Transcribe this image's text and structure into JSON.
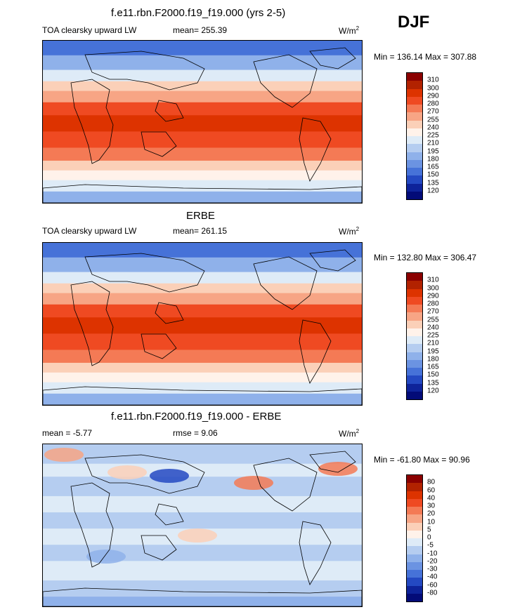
{
  "season": "DJF",
  "units_base": "W/m",
  "units_sup": "2",
  "panels": [
    {
      "title": "f.e11.rbn.F2000.f19_f19.000 (yrs 2-5)",
      "left_label": "TOA clearsky upward LW",
      "center_label": "mean= 255.39",
      "minmax": "Min = 136.14 Max = 307.88"
    },
    {
      "title": "ERBE",
      "left_label": "TOA clearsky upward LW",
      "center_label": "mean= 261.15",
      "minmax": "Min = 132.80 Max = 306.47"
    },
    {
      "title": "f.e11.rbn.F2000.f19_f19.000 - ERBE",
      "left_label": "mean =  -5.77",
      "center_label": "rmse =   9.06",
      "minmax": "Min = -61.80 Max =  90.96"
    }
  ],
  "chart_data": [
    {
      "type": "heatmap",
      "title": "f.e11.rbn.F2000.f19_f19.000 (yrs 2-5)",
      "variable": "TOA clearsky upward LW",
      "mean": 255.39,
      "min": 136.14,
      "max": 307.88,
      "levels": [
        310,
        300,
        290,
        280,
        270,
        255,
        240,
        225,
        210,
        195,
        180,
        165,
        150,
        135,
        120
      ],
      "colors": [
        "#8b0000",
        "#b22200",
        "#dd3300",
        "#ef4a22",
        "#f47a55",
        "#f7a585",
        "#fbd0b8",
        "#fff2ea",
        "#deebf7",
        "#b5cdf0",
        "#8fb1ea",
        "#6b93e2",
        "#4672d8",
        "#2449c2",
        "#0e239a",
        "#030b78"
      ]
    },
    {
      "type": "heatmap",
      "title": "ERBE",
      "variable": "TOA clearsky upward LW",
      "mean": 261.15,
      "min": 132.8,
      "max": 306.47,
      "levels": [
        310,
        300,
        290,
        280,
        270,
        255,
        240,
        225,
        210,
        195,
        180,
        165,
        150,
        135,
        120
      ],
      "colors": [
        "#8b0000",
        "#b22200",
        "#dd3300",
        "#ef4a22",
        "#f47a55",
        "#f7a585",
        "#fbd0b8",
        "#fff2ea",
        "#deebf7",
        "#b5cdf0",
        "#8fb1ea",
        "#6b93e2",
        "#4672d8",
        "#2449c2",
        "#0e239a",
        "#030b78"
      ]
    },
    {
      "type": "heatmap",
      "title": "f.e11.rbn.F2000.f19_f19.000 - ERBE",
      "mean": -5.77,
      "rmse": 9.06,
      "min": -61.8,
      "max": 90.96,
      "levels": [
        80,
        60,
        40,
        30,
        20,
        10,
        5,
        0,
        -5,
        -10,
        -20,
        -30,
        -40,
        -60,
        -80
      ],
      "colors": [
        "#8b0000",
        "#b22200",
        "#dd3300",
        "#ef4a22",
        "#f47a55",
        "#f7a585",
        "#fbd0b8",
        "#fff2ea",
        "#deebf7",
        "#b5cdf0",
        "#8fb1ea",
        "#6b93e2",
        "#4672d8",
        "#2449c2",
        "#0e239a",
        "#030b78"
      ]
    }
  ]
}
